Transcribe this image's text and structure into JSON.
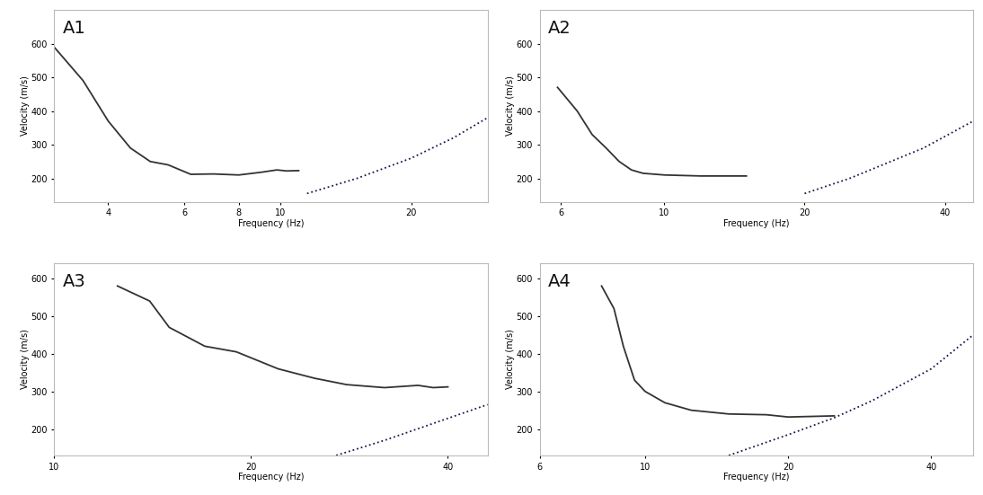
{
  "chart_data": [
    {
      "type": "line",
      "title": "A1",
      "x_label": "Frequency (Hz)",
      "y_label": "Velocity (m/s)",
      "log": "x",
      "xlim": [
        3,
        30
      ],
      "xticks": [
        4,
        6,
        8,
        10,
        20
      ],
      "ylim": [
        130,
        700
      ],
      "yticks": [
        200,
        300,
        400,
        500,
        600
      ],
      "series": [
        {
          "x": [
            3,
            3.5,
            4,
            4.5,
            5,
            5.5,
            6.2,
            7,
            8,
            9,
            9.8,
            10.3,
            11
          ],
          "values": [
            590,
            490,
            370,
            290,
            250,
            240,
            212,
            213,
            210,
            218,
            225,
            222,
            223
          ],
          "color": "#333333",
          "line_style": "solid"
        },
        {
          "x": [
            11.5,
            15,
            20,
            25,
            30
          ],
          "values": [
            155,
            200,
            260,
            320,
            380
          ],
          "color": "#1a1a4e",
          "line_style": "dotted"
        }
      ]
    },
    {
      "type": "line",
      "title": "A2",
      "x_label": "Frequency (Hz)",
      "y_label": "Velocity (m/s)",
      "log": "x",
      "xlim": [
        5.4,
        46
      ],
      "xticks": [
        6,
        10,
        20,
        40
      ],
      "ylim": [
        130,
        700
      ],
      "yticks": [
        200,
        300,
        400,
        500,
        600
      ],
      "series": [
        {
          "x": [
            5.9,
            6.5,
            7,
            7.5,
            8,
            8.5,
            9,
            10,
            12,
            15
          ],
          "values": [
            470,
            400,
            330,
            290,
            250,
            225,
            215,
            210,
            207,
            207
          ],
          "color": "#333333",
          "line_style": "solid"
        },
        {
          "x": [
            20,
            25,
            30,
            36,
            46
          ],
          "values": [
            155,
            200,
            245,
            290,
            370
          ],
          "color": "#1a1a4e",
          "line_style": "dotted"
        }
      ]
    },
    {
      "type": "line",
      "title": "A3",
      "x_label": "Frequency (Hz)",
      "y_label": "Velocity (m/s)",
      "log": "x",
      "xlim": [
        10,
        46
      ],
      "xticks": [
        10,
        20,
        40
      ],
      "ylim": [
        130,
        640
      ],
      "yticks": [
        200,
        300,
        400,
        500,
        600
      ],
      "series": [
        {
          "x": [
            12.5,
            14,
            15,
            17,
            19,
            22,
            25,
            28,
            32,
            36,
            38,
            40
          ],
          "values": [
            580,
            540,
            470,
            420,
            405,
            360,
            335,
            318,
            310,
            316,
            310,
            312
          ],
          "color": "#333333",
          "line_style": "solid"
        },
        {
          "x": [
            27,
            32,
            38,
            46
          ],
          "values": [
            130,
            170,
            215,
            265
          ],
          "color": "#1a1a4e",
          "line_style": "dotted"
        }
      ]
    },
    {
      "type": "line",
      "title": "A4",
      "x_label": "Frequency (Hz)",
      "y_label": "Velocity (m/s)",
      "log": "x",
      "xlim": [
        6,
        49
      ],
      "xticks": [
        6,
        10,
        20,
        40
      ],
      "ylim": [
        130,
        640
      ],
      "yticks": [
        200,
        300,
        400,
        500,
        600
      ],
      "series": [
        {
          "x": [
            8.1,
            8.6,
            9,
            9.5,
            10,
            11,
            12.5,
            15,
            18,
            20,
            25
          ],
          "values": [
            580,
            520,
            420,
            330,
            300,
            270,
            250,
            240,
            238,
            232,
            235
          ],
          "color": "#333333",
          "line_style": "solid"
        },
        {
          "x": [
            15,
            20,
            25,
            30,
            40,
            49
          ],
          "values": [
            130,
            185,
            230,
            275,
            360,
            450
          ],
          "color": "#1a1a4e",
          "line_style": "dotted"
        }
      ]
    }
  ]
}
